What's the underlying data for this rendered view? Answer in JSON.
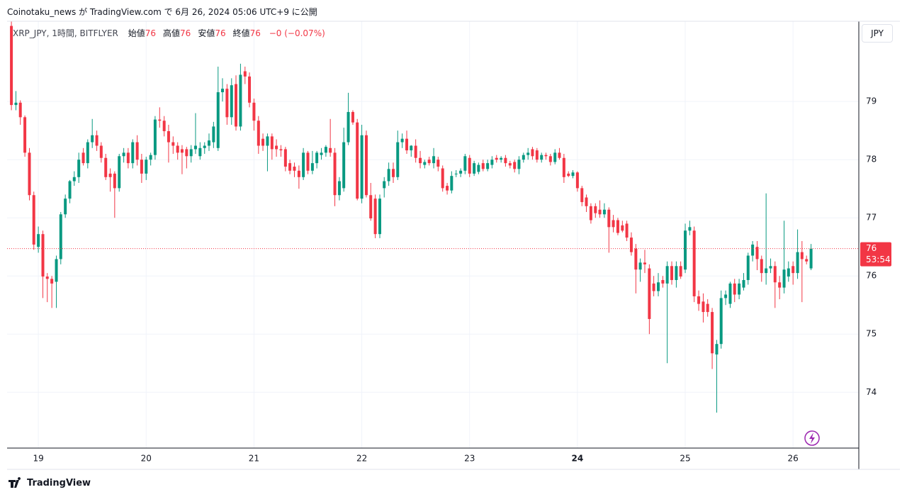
{
  "header": "Coinotaku_news が TradingView.com で 6月 26, 2024 05:06 UTC+9 に公開",
  "footer": "TradingView",
  "chart_data": {
    "type": "candlestick",
    "symbol": "XRP_JPY, 1時間, BITFLYER",
    "legend": [
      {
        "label": "始値",
        "value": "76"
      },
      {
        "label": "高値",
        "value": "76"
      },
      {
        "label": "安値",
        "value": "76"
      },
      {
        "label": "終値",
        "value": "76"
      }
    ],
    "change": "−0 (−0.07%)",
    "currency": "JPY",
    "last_price_label": "76",
    "countdown": "53:54",
    "up_color": "#089981",
    "down_color": "#f23645",
    "grid": true,
    "xlim": [
      18.71,
      26.61
    ],
    "xticks": [
      19,
      20,
      21,
      22,
      23,
      24,
      25,
      26
    ],
    "bold_xtick": 24,
    "ylim": [
      73.04,
      80.38
    ],
    "yticks": [
      74,
      75,
      76,
      77,
      78,
      79
    ],
    "candles": {
      "x": [
        18.75,
        18.792,
        18.833,
        18.875,
        18.917,
        18.958,
        19,
        19.042,
        19.083,
        19.125,
        19.167,
        19.208,
        19.25,
        19.292,
        19.333,
        19.375,
        19.417,
        19.458,
        19.5,
        19.542,
        19.583,
        19.625,
        19.667,
        19.708,
        19.75,
        19.792,
        19.833,
        19.875,
        19.917,
        19.958,
        20,
        20.042,
        20.083,
        20.125,
        20.167,
        20.208,
        20.25,
        20.292,
        20.333,
        20.375,
        20.417,
        20.458,
        20.5,
        20.542,
        20.583,
        20.625,
        20.667,
        20.708,
        20.75,
        20.792,
        20.833,
        20.875,
        20.917,
        20.958,
        21,
        21.042,
        21.083,
        21.125,
        21.167,
        21.208,
        21.25,
        21.292,
        21.333,
        21.375,
        21.417,
        21.458,
        21.5,
        21.542,
        21.583,
        21.625,
        21.667,
        21.708,
        21.75,
        21.792,
        21.833,
        21.875,
        21.917,
        21.958,
        22,
        22.042,
        22.083,
        22.125,
        22.167,
        22.208,
        22.25,
        22.292,
        22.333,
        22.375,
        22.417,
        22.458,
        22.5,
        22.542,
        22.583,
        22.625,
        22.667,
        22.708,
        22.75,
        22.792,
        22.833,
        22.875,
        22.917,
        22.958,
        23,
        23.042,
        23.083,
        23.125,
        23.167,
        23.208,
        23.25,
        23.292,
        23.333,
        23.375,
        23.417,
        23.458,
        23.5,
        23.542,
        23.583,
        23.625,
        23.667,
        23.708,
        23.75,
        23.792,
        23.833,
        23.875,
        23.917,
        23.958,
        24,
        24.042,
        24.083,
        24.125,
        24.167,
        24.208,
        24.25,
        24.292,
        24.333,
        24.375,
        24.417,
        24.458,
        24.5,
        24.542,
        24.583,
        24.625,
        24.667,
        24.708,
        24.75,
        24.792,
        24.833,
        24.875,
        24.917,
        24.958,
        25,
        25.042,
        25.083,
        25.125,
        25.167,
        25.208,
        25.25,
        25.292,
        25.333,
        25.375,
        25.417,
        25.458,
        25.5,
        25.542,
        25.583,
        25.625,
        25.667,
        25.708,
        25.75,
        25.792,
        25.833,
        25.875,
        25.917,
        25.958,
        26,
        26.042,
        26.083,
        26.125,
        26.167
      ],
      "open": [
        80.3,
        78.94,
        78.98,
        78.73,
        78.12,
        77.39,
        76.5,
        76.72,
        75.99,
        75.95,
        75.9,
        76.29,
        77.06,
        77.33,
        77.63,
        77.7,
        78.12,
        77.94,
        78.3,
        78.42,
        78.24,
        78.03,
        77.76,
        77.76,
        77.51,
        78.06,
        78.12,
        77.94,
        78.3,
        78.0,
        77.76,
        78.0,
        78.08,
        78.69,
        78.67,
        78.49,
        78.3,
        78.24,
        78.18,
        78.18,
        78.06,
        78.18,
        78.06,
        78.2,
        78.24,
        78.3,
        78.2,
        79.16,
        79.22,
        78.73,
        79.3,
        78.57,
        79.52,
        79.43,
        78.98,
        78.67,
        78.36,
        78.24,
        78.4,
        78.24,
        78.18,
        78.18,
        77.94,
        77.88,
        77.81,
        77.7,
        78.12,
        77.81,
        77.94,
        78.08,
        78.12,
        78.2,
        78.12,
        77.39,
        77.51,
        78.3,
        78.82,
        78.64,
        77.33,
        78.42,
        77.39,
        77.33,
        76.72,
        77.51,
        77.63,
        77.84,
        77.7,
        78.3,
        78.36,
        78.16,
        78.24,
        78.03,
        77.91,
        78.0,
        77.94,
        78.0,
        77.85,
        77.55,
        77.47,
        77.75,
        77.76,
        77.81,
        78.03,
        77.76,
        77.79,
        77.94,
        77.84,
        77.91,
        78.03,
        78.0,
        78.03,
        77.94,
        77.96,
        77.84,
        78.0,
        78.08,
        78.18,
        78.16,
        78.0,
        78.08,
        78.06,
        77.96,
        78.12,
        78.03,
        77.76,
        77.72,
        77.78,
        77.51,
        77.35,
        77.2,
        77.2,
        77.14,
        77.06,
        77.14,
        76.96,
        76.96,
        76.87,
        76.9,
        76.66,
        76.47,
        76.11,
        76.23,
        76.13,
        75.87,
        75.74,
        75.93,
        75.87,
        76.17,
        75.93,
        76.17,
        76.11,
        76.78,
        76.78,
        75.65,
        75.56,
        75.52,
        75.38,
        74.65,
        74.83,
        75.62,
        75.52,
        75.87,
        75.68,
        75.8,
        75.93,
        76.35,
        76.5,
        76.29,
        76.05,
        76.13,
        76.17,
        75.89,
        75.8,
        75.99,
        76.17,
        76.05,
        76.41,
        76.29,
        76.13
      ],
      "high": [
        80.38,
        79.18,
        79.02,
        78.76,
        78.2,
        77.45,
        76.85,
        76.78,
        76.05,
        76.0,
        76.35,
        77.1,
        77.4,
        77.65,
        77.8,
        78.12,
        78.2,
        78.35,
        78.7,
        78.5,
        78.3,
        78.1,
        77.85,
        77.8,
        78.1,
        78.2,
        78.2,
        78.35,
        78.42,
        78.1,
        78.05,
        78.12,
        78.75,
        78.9,
        78.75,
        78.6,
        78.4,
        78.3,
        78.25,
        78.22,
        78.25,
        78.8,
        78.3,
        78.3,
        78.45,
        78.65,
        79.6,
        79.4,
        79.3,
        79.4,
        79.45,
        79.65,
        79.6,
        79.5,
        79.05,
        78.75,
        78.45,
        78.45,
        78.45,
        78.35,
        78.25,
        78.22,
        78.0,
        77.95,
        77.9,
        78.2,
        78.15,
        78.15,
        78.15,
        78.2,
        78.25,
        78.7,
        78.2,
        77.7,
        78.55,
        79.15,
        78.85,
        78.7,
        78.6,
        78.5,
        77.6,
        77.4,
        77.4,
        77.7,
        77.95,
        77.95,
        78.5,
        78.45,
        78.5,
        78.25,
        78.35,
        78.15,
        78.0,
        78.05,
        78.2,
        78.05,
        77.9,
        77.6,
        77.8,
        77.82,
        77.85,
        78.1,
        78.08,
        77.98,
        77.95,
        78.0,
        78.0,
        78.06,
        78.08,
        78.06,
        78.08,
        77.98,
        78.0,
        78.06,
        78.12,
        78.2,
        78.22,
        78.2,
        78.12,
        78.12,
        78.1,
        78.18,
        78.2,
        78.1,
        77.8,
        77.82,
        77.8,
        77.55,
        77.4,
        77.25,
        77.25,
        77.3,
        77.25,
        77.18,
        77.05,
        77.0,
        76.95,
        76.95,
        76.75,
        76.55,
        76.3,
        76.45,
        76.2,
        76.0,
        76.05,
        76.0,
        76.25,
        76.25,
        76.25,
        76.25,
        76.9,
        76.95,
        76.85,
        75.75,
        75.7,
        75.6,
        75.45,
        74.9,
        75.75,
        75.75,
        75.9,
        75.95,
        75.95,
        76.05,
        76.4,
        76.6,
        76.6,
        76.35,
        77.42,
        76.3,
        76.25,
        76.0,
        76.95,
        76.25,
        76.25,
        76.8,
        76.6,
        76.35,
        76.55
      ],
      "low": [
        78.85,
        78.85,
        78.6,
        78.05,
        77.3,
        76.45,
        76.4,
        75.62,
        75.55,
        75.45,
        75.45,
        76.2,
        77.0,
        77.25,
        77.55,
        77.6,
        77.9,
        77.85,
        78.2,
        78.15,
        77.95,
        77.65,
        77.45,
        77.0,
        77.45,
        77.95,
        77.85,
        77.85,
        77.9,
        77.6,
        77.65,
        77.9,
        78.0,
        78.55,
        78.4,
        77.95,
        78.1,
        78.0,
        77.75,
        77.85,
        77.95,
        78.1,
        78.0,
        78.1,
        78.15,
        78.2,
        78.15,
        79.0,
        78.6,
        78.6,
        78.5,
        78.5,
        79.3,
        78.9,
        78.5,
        78.1,
        78.15,
        77.8,
        78.0,
        78.05,
        78.05,
        77.8,
        77.75,
        77.7,
        77.5,
        77.65,
        77.75,
        77.75,
        77.85,
        78.0,
        78.05,
        78.05,
        77.2,
        77.3,
        77.45,
        78.25,
        78.6,
        77.3,
        77.25,
        77.35,
        76.95,
        76.65,
        76.65,
        77.35,
        77.55,
        77.6,
        77.65,
        78.2,
        78.1,
        78.05,
        77.95,
        77.85,
        77.85,
        77.9,
        77.85,
        77.8,
        77.45,
        77.4,
        77.42,
        77.7,
        77.7,
        77.75,
        77.7,
        77.72,
        77.75,
        77.8,
        77.8,
        77.85,
        77.95,
        77.95,
        77.88,
        77.85,
        77.78,
        77.75,
        77.95,
        78.0,
        78.0,
        77.95,
        77.95,
        78.0,
        77.9,
        77.92,
        78.0,
        77.6,
        77.7,
        77.68,
        77.45,
        77.2,
        77.1,
        76.9,
        77.0,
        77.0,
        77.0,
        76.4,
        76.75,
        76.7,
        76.75,
        76.6,
        76.35,
        75.7,
        75.9,
        76.05,
        75.0,
        75.65,
        75.65,
        75.8,
        74.5,
        75.85,
        75.8,
        75.95,
        76.05,
        76.7,
        75.55,
        75.4,
        75.2,
        75.3,
        74.4,
        73.65,
        74.75,
        75.5,
        75.45,
        75.55,
        75.6,
        75.75,
        75.85,
        76.25,
        76.1,
        75.9,
        75.85,
        76.05,
        75.45,
        75.6,
        75.7,
        75.9,
        75.85,
        75.95,
        75.55,
        76.2,
        76.1
      ],
      "close": [
        78.94,
        78.98,
        78.73,
        78.12,
        77.39,
        76.54,
        76.72,
        75.99,
        75.95,
        75.87,
        76.29,
        77.06,
        77.33,
        77.63,
        77.7,
        78.0,
        77.94,
        78.3,
        78.42,
        78.24,
        78.03,
        77.7,
        77.7,
        77.51,
        78.06,
        78.12,
        77.94,
        78.3,
        78.0,
        77.76,
        78.0,
        78.08,
        78.69,
        78.67,
        78.49,
        78.3,
        78.24,
        78.12,
        78.12,
        78.06,
        78.18,
        78.24,
        78.2,
        78.24,
        78.33,
        78.57,
        79.16,
        79.22,
        78.73,
        79.28,
        78.57,
        79.46,
        79.43,
        78.98,
        78.67,
        78.24,
        78.24,
        78.4,
        78.18,
        78.18,
        78.16,
        77.88,
        77.81,
        77.81,
        77.7,
        78.12,
        77.81,
        77.94,
        78.12,
        78.12,
        78.22,
        78.12,
        77.39,
        77.63,
        78.3,
        78.82,
        78.64,
        77.33,
        78.42,
        77.39,
        76.99,
        76.72,
        77.33,
        77.63,
        77.84,
        77.7,
        78.3,
        78.36,
        78.16,
        78.24,
        78.03,
        77.94,
        77.96,
        77.94,
        78.06,
        77.88,
        77.51,
        77.47,
        77.72,
        77.76,
        77.81,
        78.06,
        77.76,
        77.94,
        77.91,
        77.84,
        77.94,
        78.0,
        78.0,
        78.03,
        77.94,
        77.9,
        77.84,
        78.0,
        78.08,
        78.12,
        78.06,
        78.0,
        78.08,
        78.06,
        77.96,
        78.12,
        78.03,
        77.7,
        77.72,
        77.78,
        77.51,
        77.27,
        77.2,
        76.96,
        77.08,
        77.06,
        77.14,
        76.84,
        76.84,
        76.74,
        76.78,
        76.66,
        76.41,
        76.11,
        76.23,
        76.2,
        75.26,
        75.74,
        75.89,
        75.87,
        76.17,
        75.93,
        76.17,
        75.99,
        76.78,
        76.84,
        75.65,
        75.52,
        75.38,
        75.38,
        74.67,
        74.83,
        75.62,
        75.68,
        75.87,
        75.68,
        75.87,
        75.93,
        76.35,
        76.54,
        76.29,
        76.05,
        76.13,
        76.17,
        75.89,
        75.8,
        76.11,
        76.13,
        76.05,
        76.41,
        76.29,
        76.25,
        76.47
      ]
    }
  }
}
